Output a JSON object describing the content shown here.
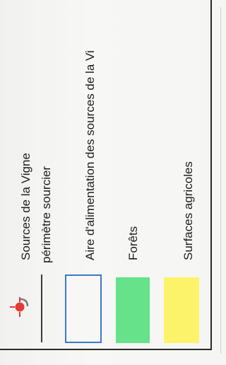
{
  "legend": {
    "items": [
      {
        "label": "Sources de la Vigne",
        "symbol": "source-point-icon",
        "color": "#e53935"
      },
      {
        "label": "périmètre sourcier",
        "symbol": "line",
        "color": "#3a3a3a"
      },
      {
        "label": "Aire d'alimentation des sources de la Vi",
        "symbol": "outline-box",
        "color": "#3a78c9"
      },
      {
        "label": "Forêts",
        "symbol": "filled-box",
        "color": "#66e28a"
      },
      {
        "label": "Surfaces agricoles",
        "symbol": "filled-box",
        "color": "#fdf36a"
      }
    ]
  }
}
